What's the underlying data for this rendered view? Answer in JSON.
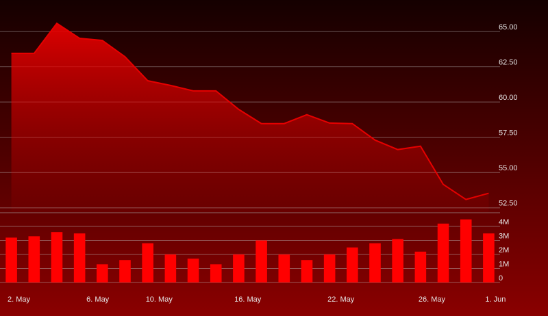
{
  "chart_data": [
    {
      "type": "area",
      "values": [
        63.45,
        63.45,
        65.58,
        64.52,
        64.37,
        63.21,
        61.51,
        61.18,
        60.79,
        60.79,
        59.48,
        58.47,
        58.47,
        59.1,
        58.51,
        58.47,
        57.3,
        56.63,
        56.87,
        54.16,
        53.09,
        53.53
      ],
      "color": "#e60000",
      "xlim": [
        -0.5,
        21.5
      ],
      "ylim": [
        52.2,
        66.75
      ],
      "yticks": [
        {
          "value": 52.5,
          "label": "52.50"
        },
        {
          "value": 55,
          "label": "55.00"
        },
        {
          "value": 57.5,
          "label": "57.50"
        },
        {
          "value": 60,
          "label": "60.00"
        },
        {
          "value": 62.5,
          "label": "62.50"
        },
        {
          "value": 65,
          "label": "65.00"
        }
      ],
      "grid": true
    },
    {
      "type": "bar",
      "values": [
        3200000,
        3300000,
        3600000,
        3500000,
        1300000,
        1600000,
        2800000,
        2000000,
        1700000,
        1300000,
        2000000,
        3000000,
        2000000,
        1600000,
        2000000,
        2500000,
        2800000,
        3100000,
        2200000,
        4200000,
        4500000,
        3500000
      ],
      "color": "#ff0000",
      "xlim": [
        -0.5,
        21.5
      ],
      "xticks": [
        {
          "value": 0.33,
          "label": "2. May"
        },
        {
          "value": 3.8,
          "label": "6. May"
        },
        {
          "value": 6.5,
          "label": "10. May"
        },
        {
          "value": 10.4,
          "label": "16. May"
        },
        {
          "value": 14.5,
          "label": "22. May"
        },
        {
          "value": 18.5,
          "label": "26. May"
        },
        {
          "value": 21.3,
          "label": "1. Jun"
        }
      ],
      "ylim": [
        0,
        4830000
      ],
      "yticks": [
        {
          "value": 0,
          "label": "0"
        },
        {
          "value": 1000000,
          "label": "1M"
        },
        {
          "value": 2000000,
          "label": "2M"
        },
        {
          "value": 3000000,
          "label": "3M"
        },
        {
          "value": 4000000,
          "label": "4M"
        }
      ],
      "grid": true
    }
  ]
}
